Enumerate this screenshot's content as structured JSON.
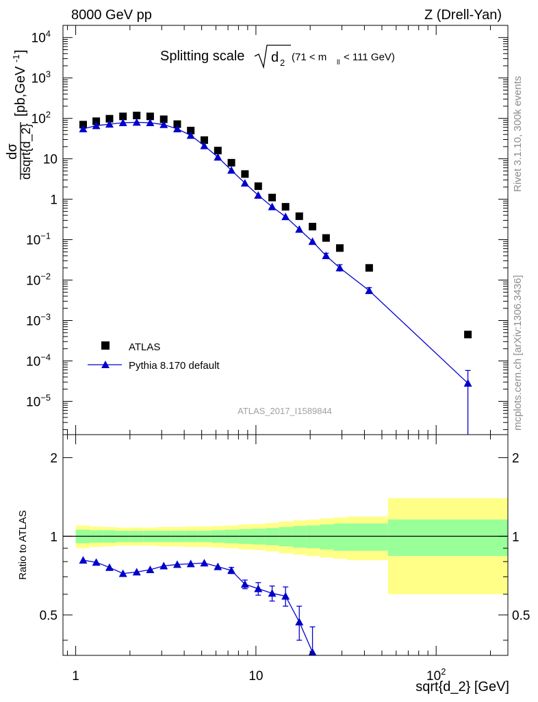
{
  "header": {
    "left": "8000 GeV pp",
    "right": "Z (Drell-Yan)"
  },
  "main_title": {
    "prefix": "Splitting scale",
    "d": "d",
    "d_sub": "2",
    "range_a": "(71 < m",
    "range_sub": "ll",
    "range_b": "< 111 GeV)"
  },
  "side_text": {
    "rivet": "Rivet 3.1.10,  300k events",
    "mcplots": "mcplots.cern.ch [arXiv:1306.3436]"
  },
  "watermark": "ATLAS_2017_I1589844",
  "ylabel_top": {
    "numerator": "dσ",
    "denominator": "dsqrt{d_2}",
    "units_a": "[pb,GeV",
    "units_exp": "-1",
    "units_b": "]"
  },
  "ylabel_bottom": "Ratio to ATLAS",
  "xlabel": "sqrt{d_2} [GeV]",
  "legend": {
    "data": "ATLAS",
    "mc": "Pythia 8.170 default"
  },
  "colors": {
    "mc": "#0000cc",
    "band_inner": "#99ff99",
    "band_outer": "#ffff88",
    "side_text": "#8c8c8c"
  },
  "chart_data": [
    {
      "type": "scatter",
      "panel": "main",
      "xscale": "log",
      "yscale": "log",
      "xlim": [
        0.85,
        250
      ],
      "ylim": [
        1.5e-06,
        20000
      ],
      "xticks": [
        {
          "v": 1,
          "label": "1"
        },
        {
          "v": 10,
          "label": "10"
        },
        {
          "v": 100,
          "label": "10",
          "exp": "2"
        }
      ],
      "yticks": [
        {
          "v": 1e-05,
          "label": "10",
          "exp": "−5"
        },
        {
          "v": 0.0001,
          "label": "10",
          "exp": "−4"
        },
        {
          "v": 0.001,
          "label": "10",
          "exp": "−3"
        },
        {
          "v": 0.01,
          "label": "10",
          "exp": "−2"
        },
        {
          "v": 0.1,
          "label": "10",
          "exp": "−1"
        },
        {
          "v": 1,
          "label": "1"
        },
        {
          "v": 10,
          "label": "10"
        },
        {
          "v": 100,
          "label": "10",
          "exp": "2"
        },
        {
          "v": 1000,
          "label": "10",
          "exp": "3"
        },
        {
          "v": 10000,
          "label": "10",
          "exp": "4"
        }
      ],
      "series": [
        {
          "name": "ATLAS",
          "marker": "square",
          "x": [
            1.1,
            1.3,
            1.54,
            1.83,
            2.18,
            2.59,
            3.08,
            3.66,
            4.35,
            5.17,
            6.15,
            7.31,
            8.69,
            10.3,
            12.3,
            14.6,
            17.4,
            20.6,
            24.5,
            29.2,
            42.5,
            150
          ],
          "y": [
            70,
            85,
            98,
            112,
            118,
            112,
            95,
            72,
            50,
            29,
            16,
            8,
            4.2,
            2.1,
            1.1,
            0.65,
            0.38,
            0.21,
            0.11,
            0.062,
            0.02,
            0.00045
          ]
        },
        {
          "name": "Pythia 8.170 default",
          "marker": "triangle",
          "x": [
            1.1,
            1.3,
            1.54,
            1.83,
            2.18,
            2.59,
            3.08,
            3.66,
            4.35,
            5.17,
            6.15,
            7.31,
            8.69,
            10.3,
            12.3,
            14.6,
            17.4,
            20.6,
            24.5,
            29.2,
            42.5,
            150
          ],
          "y": [
            55,
            66,
            72,
            78,
            80,
            78,
            70,
            55,
            38,
            21,
            11,
            5.2,
            2.5,
            1.25,
            0.65,
            0.37,
            0.18,
            0.09,
            0.04,
            0.02,
            0.0055,
            2.8e-05
          ],
          "err": [
            0,
            0,
            0,
            0,
            0,
            0,
            0,
            0,
            0,
            0,
            0,
            0,
            0,
            0,
            0,
            0,
            0,
            0,
            0.006,
            0.004,
            0.001,
            3e-05
          ]
        }
      ]
    },
    {
      "type": "line",
      "panel": "ratio",
      "xscale": "log",
      "xlim": [
        0.85,
        250
      ],
      "ylim": [
        0.35,
        2.45
      ],
      "yticks": [
        {
          "v": 0.5,
          "label": "0.5"
        },
        {
          "v": 1,
          "label": "1"
        },
        {
          "v": 2,
          "label": "2"
        }
      ],
      "reference_line": 1,
      "bands": {
        "edges": [
          1,
          1.2,
          1.42,
          1.68,
          2,
          2.38,
          2.83,
          3.36,
          4,
          4.75,
          5.65,
          6.72,
          8,
          9.5,
          11.3,
          13.4,
          16,
          19,
          22.6,
          26.9,
          32,
          54,
          250
        ],
        "inner": [
          0.06,
          0.055,
          0.055,
          0.05,
          0.05,
          0.05,
          0.05,
          0.05,
          0.05,
          0.05,
          0.055,
          0.06,
          0.065,
          0.07,
          0.075,
          0.085,
          0.095,
          0.1,
          0.11,
          0.12,
          0.12,
          0.16
        ],
        "outer": [
          0.1,
          0.09,
          0.085,
          0.08,
          0.08,
          0.08,
          0.085,
          0.085,
          0.09,
          0.09,
          0.095,
          0.1,
          0.11,
          0.115,
          0.125,
          0.14,
          0.15,
          0.16,
          0.17,
          0.18,
          0.19,
          0.4
        ]
      },
      "series": [
        {
          "name": "Pythia 8.170 default",
          "x": [
            1.1,
            1.3,
            1.54,
            1.83,
            2.18,
            2.59,
            3.08,
            3.66,
            4.35,
            5.17,
            6.15,
            7.31,
            8.69,
            10.3,
            12.3,
            14.6,
            17.4,
            20.6
          ],
          "y": [
            0.81,
            0.795,
            0.76,
            0.72,
            0.73,
            0.745,
            0.77,
            0.78,
            0.785,
            0.79,
            0.765,
            0.74,
            0.655,
            0.63,
            0.605,
            0.59,
            0.47,
            0.36
          ],
          "err": [
            0,
            0,
            0,
            0,
            0,
            0,
            0,
            0,
            0,
            0,
            0,
            0.02,
            0.025,
            0.035,
            0.04,
            0.05,
            0.07,
            0.09
          ]
        }
      ]
    }
  ]
}
